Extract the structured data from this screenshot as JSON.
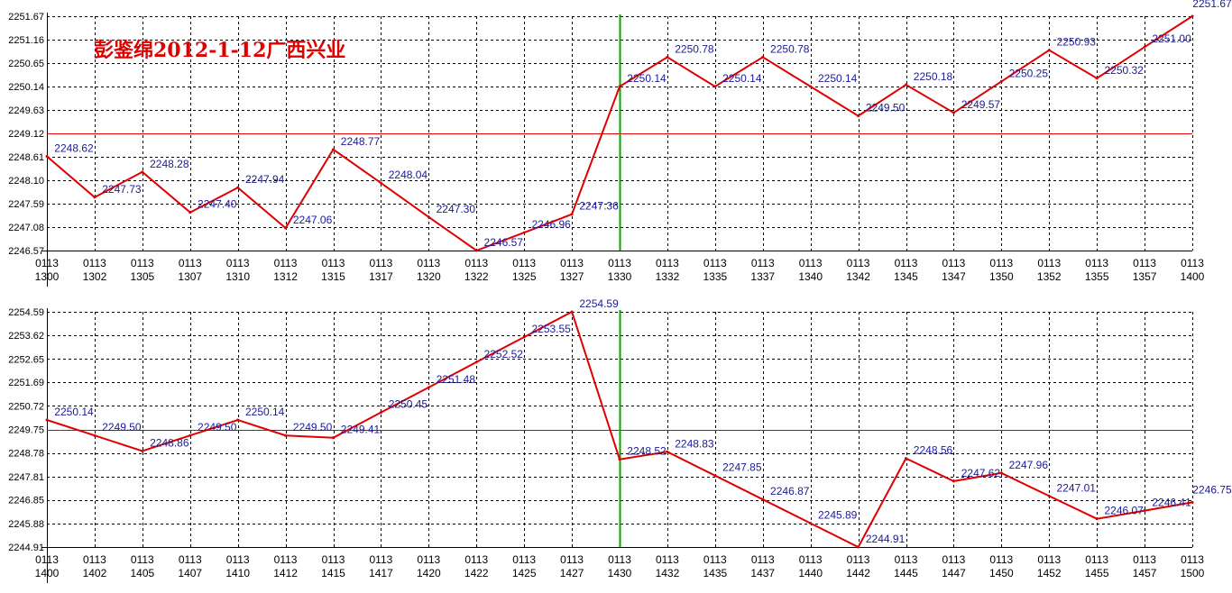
{
  "title": "彭鉴绵2012-1-12广西兴业",
  "colors": {
    "line": "#e00000",
    "labels": "#1a1a9a",
    "axis_text": "#000000",
    "grid": "#000000",
    "ref_line": "#e00000",
    "divider": "#00aa00",
    "title": "#dd0000"
  },
  "chart_data": [
    {
      "type": "line",
      "date_label": "0113",
      "y_ticks": [
        "2246.57",
        "2247.08",
        "2247.59",
        "2248.10",
        "2248.61",
        "2249.12",
        "2249.63",
        "2250.14",
        "2250.65",
        "2251.16",
        "2251.67"
      ],
      "ylim": [
        2246.57,
        2251.67
      ],
      "reference_value": 2249.12,
      "divider_at": "1330",
      "grid": true,
      "x_ticks": [
        "1300",
        "1302",
        "1305",
        "1307",
        "1310",
        "1312",
        "1315",
        "1317",
        "1320",
        "1322",
        "1325",
        "1327",
        "1330",
        "1332",
        "1335",
        "1337",
        "1340",
        "1342",
        "1345",
        "1347",
        "1350",
        "1352",
        "1355",
        "1357",
        "1400"
      ],
      "points": [
        {
          "t": "1300",
          "v": 2248.62
        },
        {
          "t": "1302",
          "v": 2247.73
        },
        {
          "t": "1305",
          "v": 2248.28
        },
        {
          "t": "1307",
          "v": 2247.4
        },
        {
          "t": "1310",
          "v": 2247.94
        },
        {
          "t": "1312",
          "v": 2247.06
        },
        {
          "t": "1315",
          "v": 2248.77
        },
        {
          "t": "1317",
          "v": 2248.04
        },
        {
          "t": "1320",
          "v": 2247.3
        },
        {
          "t": "1322",
          "v": 2246.57
        },
        {
          "t": "1325",
          "v": 2246.96
        },
        {
          "t": "1327",
          "v": 2247.36
        },
        {
          "t": "1330",
          "v": 2250.14
        },
        {
          "t": "1332",
          "v": 2250.78
        },
        {
          "t": "1335",
          "v": 2250.14
        },
        {
          "t": "1337",
          "v": 2250.78
        },
        {
          "t": "1340",
          "v": 2250.14
        },
        {
          "t": "1342",
          "v": 2249.5
        },
        {
          "t": "1345",
          "v": 2250.18
        },
        {
          "t": "1347",
          "v": 2249.57
        },
        {
          "t": "1350",
          "v": 2250.25
        },
        {
          "t": "1352",
          "v": 2250.93
        },
        {
          "t": "1355",
          "v": 2250.32
        },
        {
          "t": "1357",
          "v": 2251.0
        },
        {
          "t": "1400",
          "v": 2251.67
        }
      ]
    },
    {
      "type": "line",
      "date_label": "0113",
      "y_ticks": [
        "2244.91",
        "2245.88",
        "2246.85",
        "2247.81",
        "2248.78",
        "2249.75",
        "2250.72",
        "2251.69",
        "2252.65",
        "2253.62",
        "2254.59"
      ],
      "ylim": [
        2244.91,
        2254.59
      ],
      "reference_value": 2249.75,
      "divider_at": "1430",
      "grid": true,
      "x_ticks": [
        "1400",
        "1402",
        "1405",
        "1407",
        "1410",
        "1412",
        "1415",
        "1417",
        "1420",
        "1422",
        "1425",
        "1427",
        "1430",
        "1432",
        "1435",
        "1437",
        "1440",
        "1442",
        "1445",
        "1447",
        "1450",
        "1452",
        "1455",
        "1457",
        "1500"
      ],
      "points": [
        {
          "t": "1400",
          "v": 2250.14
        },
        {
          "t": "1402",
          "v": 2249.5
        },
        {
          "t": "1405",
          "v": 2248.86
        },
        {
          "t": "1407",
          "v": 2249.5
        },
        {
          "t": "1410",
          "v": 2250.14
        },
        {
          "t": "1412",
          "v": 2249.5
        },
        {
          "t": "1415",
          "v": 2249.41
        },
        {
          "t": "1417",
          "v": 2250.45
        },
        {
          "t": "1420",
          "v": 2251.48
        },
        {
          "t": "1422",
          "v": 2252.52
        },
        {
          "t": "1425",
          "v": 2253.55
        },
        {
          "t": "1427",
          "v": 2254.59
        },
        {
          "t": "1430",
          "v": 2248.52
        },
        {
          "t": "1432",
          "v": 2248.83
        },
        {
          "t": "1435",
          "v": 2247.85
        },
        {
          "t": "1437",
          "v": 2246.87
        },
        {
          "t": "1440",
          "v": 2245.89
        },
        {
          "t": "1442",
          "v": 2244.91
        },
        {
          "t": "1445",
          "v": 2248.56
        },
        {
          "t": "1447",
          "v": 2247.62
        },
        {
          "t": "1450",
          "v": 2247.96
        },
        {
          "t": "1452",
          "v": 2247.01
        },
        {
          "t": "1455",
          "v": 2246.07
        },
        {
          "t": "1457",
          "v": 2246.41
        },
        {
          "t": "1500",
          "v": 2246.75
        }
      ]
    }
  ]
}
